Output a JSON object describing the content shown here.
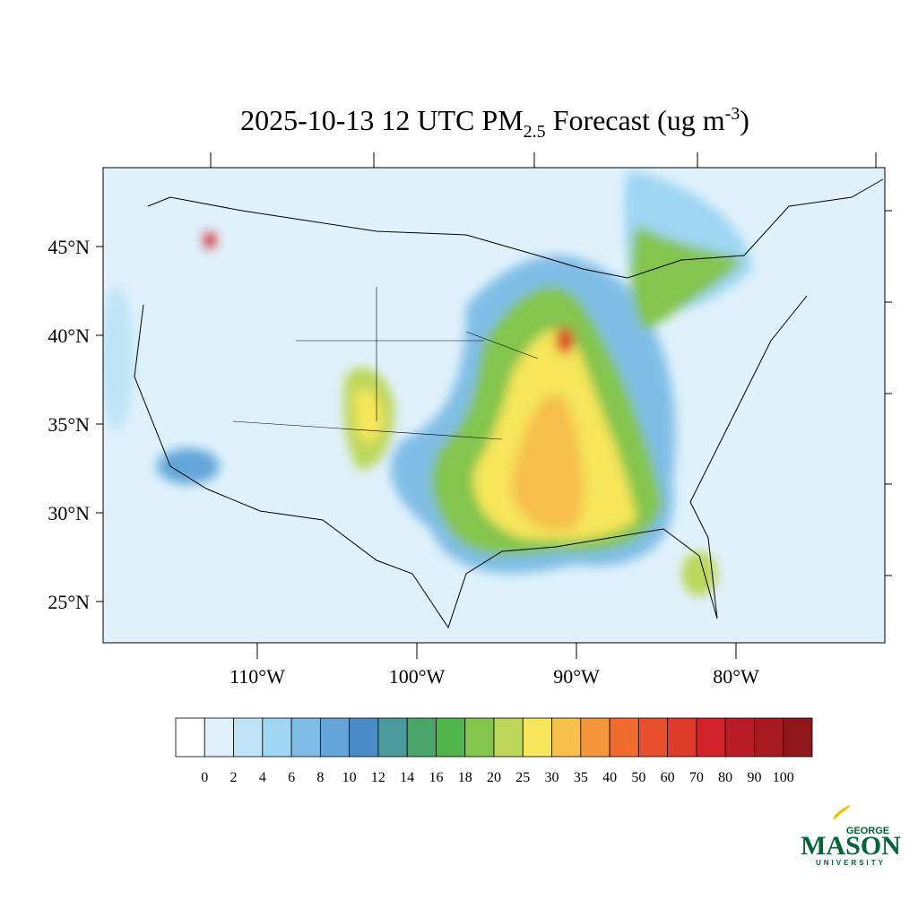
{
  "title": {
    "main": "2025-10-13 12 UTC PM",
    "sub": "2.5",
    "rest": " Forecast (ug m",
    "sup": "-3",
    "close": ")"
  },
  "map": {
    "lat_labels": [
      "45°N",
      "40°N",
      "35°N",
      "30°N",
      "25°N"
    ],
    "lon_labels": [
      "110°W",
      "100°W",
      "90°W",
      "80°W"
    ]
  },
  "colorbar": {
    "levels": [
      0,
      2,
      4,
      6,
      8,
      10,
      12,
      14,
      16,
      18,
      20,
      25,
      30,
      35,
      40,
      50,
      60,
      70,
      80,
      90,
      100
    ],
    "colors": [
      "#ffffff",
      "#dff2fc",
      "#bfe4f7",
      "#9fd6f3",
      "#80bde6",
      "#64a6da",
      "#4a8cc9",
      "#4b9a9e",
      "#4aa56b",
      "#4fb548",
      "#84c54e",
      "#bed65a",
      "#f6e65a",
      "#f7bf4b",
      "#f6973d",
      "#f26b2f",
      "#e8502b",
      "#dd3a27",
      "#d22229",
      "#b91c24",
      "#a61a20",
      "#8f161b"
    ]
  },
  "logo": {
    "top": "GEORGE",
    "main": "MASON",
    "bottom": "UNIVERSITY"
  }
}
